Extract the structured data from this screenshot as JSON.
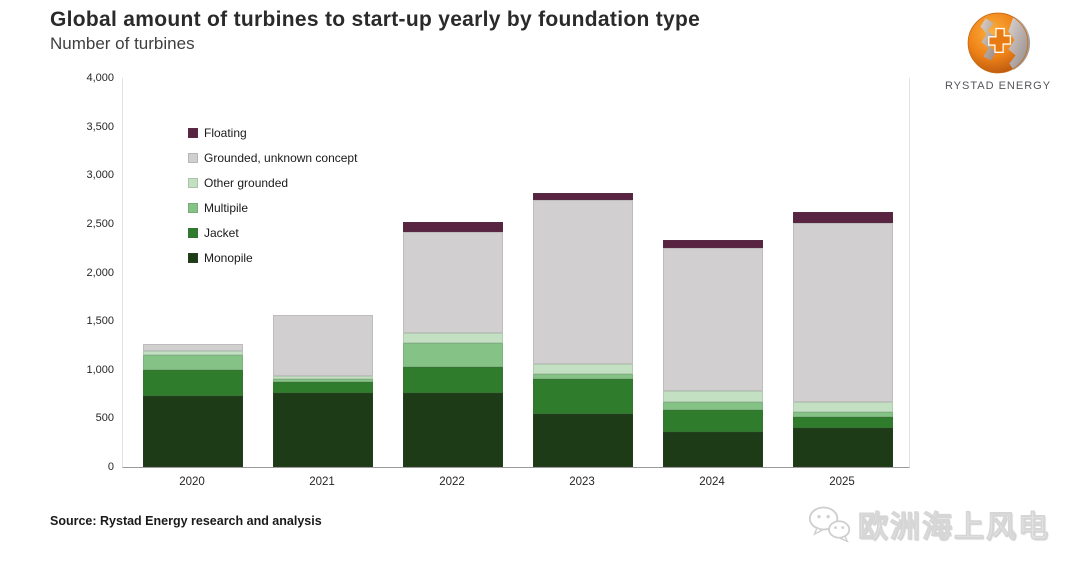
{
  "header": {
    "title": "Global amount of turbines to start-up yearly by foundation type",
    "subtitle": "Number of turbines"
  },
  "logo": {
    "text": "RYSTAD ENERGY",
    "icon": "rystad-globe-icon"
  },
  "source": {
    "label": "Source: Rystad Energy research and analysis"
  },
  "watermark": {
    "text": "欧洲海上风电",
    "icon": "wechat-icon"
  },
  "chart_data": {
    "type": "bar",
    "stacked": true,
    "title": "Global amount of turbines to start-up yearly by foundation type",
    "ylabel": "Number of turbines",
    "xlabel": "",
    "categories": [
      "2020",
      "2021",
      "2022",
      "2023",
      "2024",
      "2025"
    ],
    "series": [
      {
        "name": "Monopile",
        "color": "#1e3b17",
        "values": [
          730,
          760,
          760,
          550,
          360,
          400
        ]
      },
      {
        "name": "Jacket",
        "color": "#2f7c2d",
        "values": [
          270,
          110,
          270,
          360,
          230,
          110
        ]
      },
      {
        "name": "Multipile",
        "color": "#85c285",
        "values": [
          150,
          40,
          250,
          50,
          80,
          60
        ]
      },
      {
        "name": "Other grounded",
        "color": "#c3e0c2",
        "values": [
          40,
          30,
          100,
          100,
          110,
          95
        ]
      },
      {
        "name": "Grounded, unknown concept",
        "color": "#d1cfd0",
        "values": [
          70,
          620,
          1040,
          1690,
          1470,
          1840
        ]
      },
      {
        "name": "Floating",
        "color": "#592441",
        "values": [
          0,
          0,
          100,
          70,
          80,
          120
        ]
      }
    ],
    "totals": [
      1260,
      1560,
      2520,
      2820,
      2330,
      2625
    ],
    "legend_order": [
      "Floating",
      "Grounded, unknown concept",
      "Other grounded",
      "Multipile",
      "Jacket",
      "Monopile"
    ],
    "legend_position": "upper-left-inside",
    "ylim": [
      0,
      4000
    ],
    "y_ticks": [
      0,
      500,
      1000,
      1500,
      2000,
      2500,
      3000,
      3500,
      4000
    ],
    "grid": false
  }
}
